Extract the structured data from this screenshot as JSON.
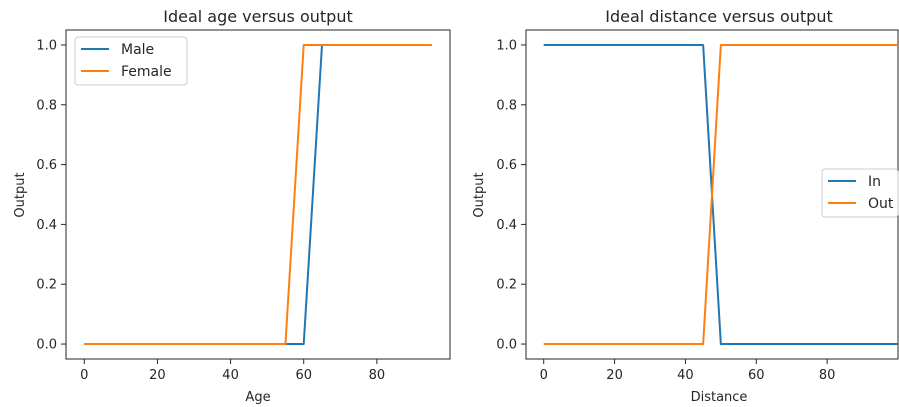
{
  "chart_data": [
    {
      "type": "line",
      "title": "Ideal age versus output",
      "xlabel": "Age",
      "ylabel": "Output",
      "xlim": [
        -5,
        100
      ],
      "ylim": [
        -0.05,
        1.05
      ],
      "xticks": [
        0,
        20,
        40,
        60,
        80
      ],
      "yticks": [
        0.0,
        0.2,
        0.4,
        0.6,
        0.8,
        1.0
      ],
      "xtick_labels": [
        "0",
        "20",
        "40",
        "60",
        "80"
      ],
      "ytick_labels": [
        "0.0",
        "0.2",
        "0.4",
        "0.6",
        "0.8",
        "1.0"
      ],
      "grid": false,
      "legend": "top-left",
      "series": [
        {
          "name": "Male",
          "color": "#1f77b4",
          "x": [
            0,
            60,
            65,
            95
          ],
          "y": [
            0,
            0,
            1,
            1
          ]
        },
        {
          "name": "Female",
          "color": "#ff7f0e",
          "x": [
            0,
            55,
            60,
            95
          ],
          "y": [
            0,
            0,
            1,
            1
          ]
        }
      ]
    },
    {
      "type": "line",
      "title": "Ideal distance versus output",
      "xlabel": "Distance",
      "ylabel": "Output",
      "xlim": [
        -5,
        100
      ],
      "ylim": [
        -0.05,
        1.05
      ],
      "xticks": [
        0,
        20,
        40,
        60,
        80
      ],
      "yticks": [
        0.0,
        0.2,
        0.4,
        0.6,
        0.8,
        1.0
      ],
      "xtick_labels": [
        "0",
        "20",
        "40",
        "60",
        "80"
      ],
      "ytick_labels": [
        "0.0",
        "0.2",
        "0.4",
        "0.6",
        "0.8",
        "1.0"
      ],
      "grid": false,
      "legend": "center-right",
      "series": [
        {
          "name": "In",
          "color": "#1f77b4",
          "x": [
            0,
            45,
            50,
            100
          ],
          "y": [
            1,
            1,
            0,
            0
          ]
        },
        {
          "name": "Out",
          "color": "#ff7f0e",
          "x": [
            0,
            45,
            50,
            100
          ],
          "y": [
            0,
            0,
            1,
            1
          ]
        }
      ]
    }
  ]
}
